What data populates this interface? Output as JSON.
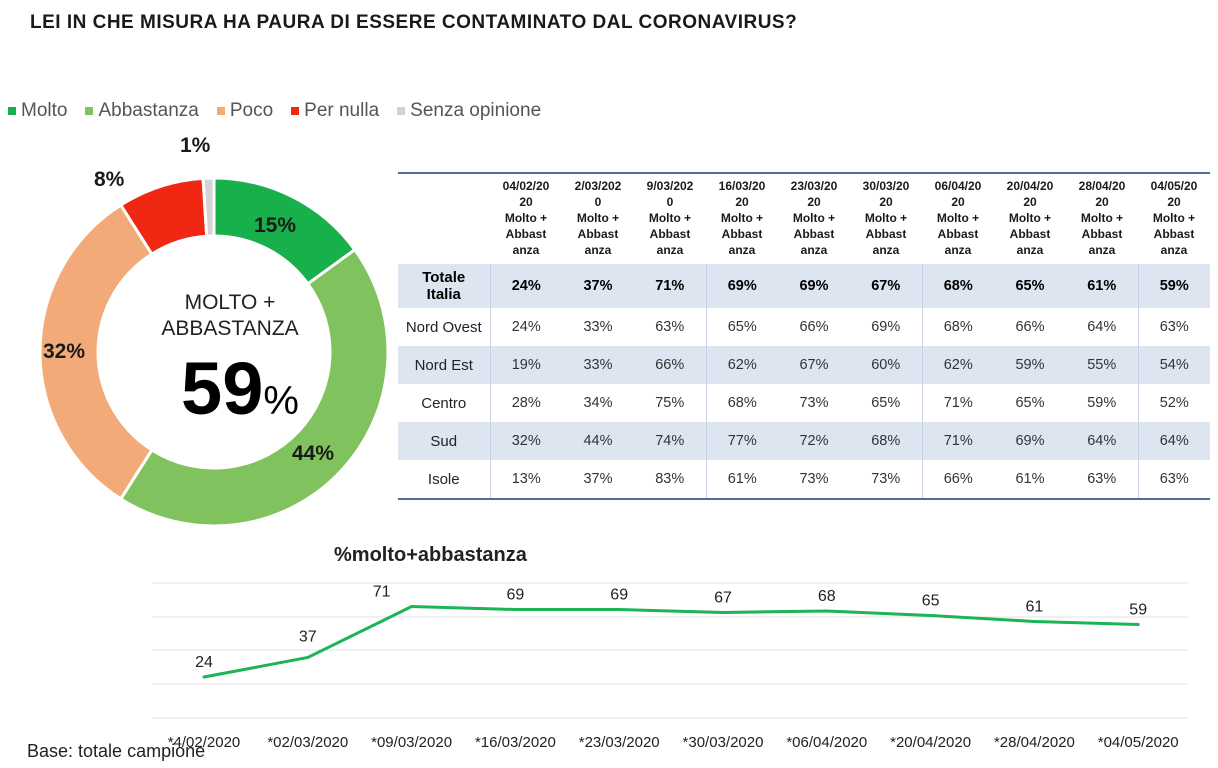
{
  "title": "LEI IN CHE MISURA HA PAURA DI ESSERE CONTAMINATO DAL CORONAVIRUS?",
  "legend": [
    {
      "label": "Molto",
      "color": "#17b04b"
    },
    {
      "label": "Abbastanza",
      "color": "#7fc25e"
    },
    {
      "label": "Poco",
      "color": "#f2aa78"
    },
    {
      "label": "Per nulla",
      "color": "#f02712"
    },
    {
      "label": "Senza opinione",
      "color": "#d4d4d4"
    }
  ],
  "donut": {
    "center_label_1": "MOLTO +",
    "center_label_2": "ABBASTANZA",
    "big_value": "59",
    "big_unit": "%",
    "slices": [
      {
        "label": "Molto",
        "value": 15,
        "text": "15%",
        "color": "#17b04b"
      },
      {
        "label": "Abbastanza",
        "value": 44,
        "text": "44%",
        "color": "#7fc25e"
      },
      {
        "label": "Poco",
        "value": 32,
        "text": "32%",
        "color": "#f2aa78"
      },
      {
        "label": "Per nulla",
        "value": 8,
        "text": "8%",
        "color": "#f02712"
      },
      {
        "label": "Senza opinione",
        "value": 1,
        "text": "1%",
        "color": "#d4d4d4"
      }
    ]
  },
  "table": {
    "headers": [
      [
        "04/02/20",
        "20",
        "Molto +",
        "Abbast",
        "anza"
      ],
      [
        "2/03/202",
        "0",
        "Molto +",
        "Abbast",
        "anza"
      ],
      [
        "9/03/202",
        "0",
        "Molto +",
        "Abbast",
        "anza"
      ],
      [
        "16/03/20",
        "20",
        "Molto +",
        "Abbast",
        "anza"
      ],
      [
        "23/03/20",
        "20",
        "Molto +",
        "Abbast",
        "anza"
      ],
      [
        "30/03/20",
        "20",
        "Molto +",
        "Abbast",
        "anza"
      ],
      [
        "06/04/20",
        "20",
        "Molto +",
        "Abbast",
        "anza"
      ],
      [
        "20/04/20",
        "20",
        "Molto +",
        "Abbast",
        "anza"
      ],
      [
        "28/04/20",
        "20",
        "Molto +",
        "Abbast",
        "anza"
      ],
      [
        "04/05/20",
        "20",
        "Molto +",
        "Abbast",
        "anza"
      ]
    ],
    "rows": [
      {
        "label_1": "Totale",
        "label_2": "Italia",
        "values": [
          "24%",
          "37%",
          "71%",
          "69%",
          "69%",
          "67%",
          "68%",
          "65%",
          "61%",
          "59%"
        ]
      },
      {
        "label_1": "Nord Ovest",
        "values": [
          "24%",
          "33%",
          "63%",
          "65%",
          "66%",
          "69%",
          "68%",
          "66%",
          "64%",
          "63%"
        ]
      },
      {
        "label_1": "Nord Est",
        "values": [
          "19%",
          "33%",
          "66%",
          "62%",
          "67%",
          "60%",
          "62%",
          "59%",
          "55%",
          "54%"
        ]
      },
      {
        "label_1": "Centro",
        "values": [
          "28%",
          "34%",
          "75%",
          "68%",
          "73%",
          "65%",
          "71%",
          "65%",
          "59%",
          "52%"
        ]
      },
      {
        "label_1": "Sud",
        "values": [
          "32%",
          "44%",
          "74%",
          "77%",
          "72%",
          "68%",
          "71%",
          "69%",
          "64%",
          "64%"
        ]
      },
      {
        "label_1": "Isole",
        "values": [
          "13%",
          "37%",
          "83%",
          "61%",
          "73%",
          "73%",
          "66%",
          "61%",
          "63%",
          "63%"
        ]
      }
    ]
  },
  "chart_data": {
    "type": "line",
    "title": "%molto+abbastanza",
    "categories": [
      "*4/02/2020",
      "*02/03/2020",
      "*09/03/2020",
      "*16/03/2020",
      "*23/03/2020",
      "*30/03/2020",
      "*06/04/2020",
      "*20/04/2020",
      "*28/04/2020",
      "*04/05/2020"
    ],
    "values": [
      24,
      37,
      71,
      69,
      69,
      67,
      68,
      65,
      61,
      59
    ],
    "value_labels": [
      "24",
      "37",
      "71",
      "69",
      "69",
      "67",
      "68",
      "65",
      "61",
      "59"
    ],
    "line_color": "#1cb455",
    "grid": true
  },
  "footer": "Base: totale campione"
}
